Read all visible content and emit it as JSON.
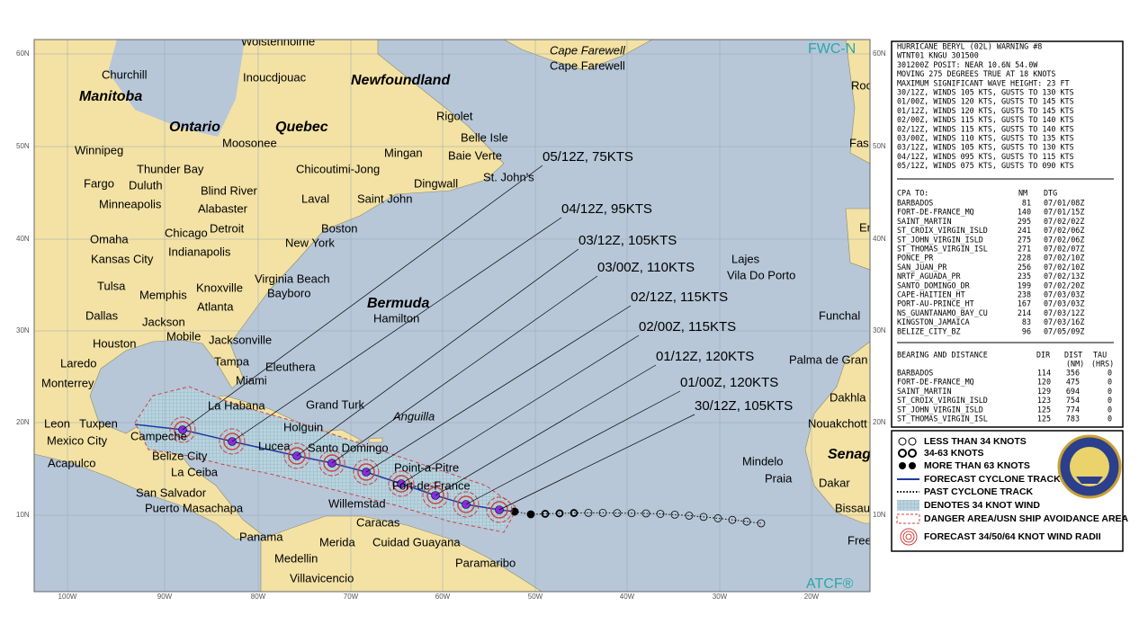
{
  "map": {
    "credit_top": "FWC-N",
    "credit_bottom": "ATCF®",
    "lat_labels": [
      "60N",
      "50N",
      "40N",
      "30N",
      "20N",
      "10N"
    ],
    "lon_labels": [
      "100W",
      "90W",
      "80W",
      "70W",
      "60W",
      "50W",
      "40W",
      "30W",
      "20W"
    ],
    "places": [
      "Wolstenholme",
      "Churchill",
      "Manitoba",
      "Inoucdjouac",
      "Newfoundland",
      "Cape Farewell",
      "Cape Farewell",
      "Ontario",
      "Quebec",
      "Rigolet",
      "Moosonee",
      "Belle Isle",
      "Winnipeg",
      "Mingan",
      "Baie Verte",
      "Thunder Bay",
      "Chicoutimi-Jong",
      "St. John's",
      "Fargo",
      "Duluth",
      "Dingwall",
      "Blind River",
      "Minneapolis",
      "Alabaster",
      "Laval",
      "Saint John",
      "Boston",
      "Chicago",
      "Detroit",
      "Omaha",
      "New York",
      "Indianapolis",
      "Kansas City",
      "Lajes",
      "Vila Do Porto",
      "Virginia Beach",
      "Tulsa",
      "Knoxville",
      "Bayboro",
      "Memphis",
      "Bermuda",
      "Atlanta",
      "Dallas",
      "Jackson",
      "Hamilton",
      "Funchal",
      "Mobile",
      "Jacksonville",
      "Houston",
      "Palma de Gran",
      "Laredo",
      "Tampa",
      "Eleuthera",
      "Monterrey",
      "Miami",
      "Dakhla",
      "La Habana",
      "Grand Turk",
      "Anguilla",
      "Leon",
      "Tuxpen",
      "Holguin",
      "Nouakchott",
      "Campeche",
      "Mexico City",
      "Lucea",
      "Santo Domingo",
      "Senag",
      "Belize City",
      "Acapulco",
      "Mindelo",
      "Point-a-Pitre",
      "La Ceiba",
      "Praia",
      "Fort-de-France",
      "Dakar",
      "San Salvador",
      "Willemstad",
      "Puerto Masachapa",
      "Bissau",
      "Caracas",
      "Panama",
      "Merida",
      "Cuidad Guayana",
      "Freet",
      "Medellin",
      "Paramaribo",
      "Villavicencio",
      "Roc",
      "Fas",
      "Er"
    ]
  },
  "forecast_labels": [
    "05/12Z,  75KTS",
    "04/12Z,  95KTS",
    "03/12Z, 105KTS",
    "03/00Z, 110KTS",
    "02/12Z, 115KTS",
    "02/00Z, 115KTS",
    "01/12Z, 120KTS",
    "01/00Z, 120KTS",
    "30/12Z, 105KTS"
  ],
  "warning": {
    "lines": [
      "HURRICANE BERYL (02L) WARNING #8",
      "WTNT01 KNGU 301500",
      "301200Z POSIT: NEAR 10.6N 54.0W",
      "MOVING 275 DEGREES TRUE AT 18 KNOTS",
      "MAXIMUM SIGNIFICANT WAVE HEIGHT: 23 FT",
      "30/12Z, WINDS 105 KTS, GUSTS TO 130 KTS",
      "01/00Z, WINDS 120 KTS, GUSTS TO 145 KTS",
      "01/12Z, WINDS 120 KTS, GUSTS TO 145 KTS",
      "02/00Z, WINDS 115 KTS, GUSTS TO 140 KTS",
      "02/12Z, WINDS 115 KTS, GUSTS TO 140 KTS",
      "03/00Z, WINDS 110 KTS, GUSTS TO 135 KTS",
      "03/12Z, WINDS 105 KTS, GUSTS TO 130 KTS",
      "04/12Z, WINDS 095 KTS, GUSTS TO 115 KTS",
      "05/12Z, WINDS 075 KTS, GUSTS TO 090 KTS"
    ]
  },
  "cpa": {
    "header": [
      "CPA TO:",
      "NM",
      "DTG"
    ],
    "rows": [
      [
        "BARBADOS",
        81,
        "07/01/08Z"
      ],
      [
        "FORT-DE-FRANCE_MQ",
        140,
        "07/01/15Z"
      ],
      [
        "SAINT_MARTIN",
        295,
        "07/02/02Z"
      ],
      [
        "ST_CROIX_VIRGIN_ISLD",
        241,
        "07/02/06Z"
      ],
      [
        "ST_JOHN_VIRGIN_ISLD",
        275,
        "07/02/06Z"
      ],
      [
        "ST_THOMAS_VIRGIN_ISL",
        271,
        "07/02/07Z"
      ],
      [
        "PONCE_PR",
        228,
        "07/02/10Z"
      ],
      [
        "SAN_JUAN_PR",
        256,
        "07/02/10Z"
      ],
      [
        "NRTF_AGUADA_PR",
        235,
        "07/02/13Z"
      ],
      [
        "SANTO_DOMINGO_DR",
        199,
        "07/02/20Z"
      ],
      [
        "CAPE-HAITIEN_HT",
        238,
        "07/03/03Z"
      ],
      [
        "PORT-AU-PRINCE_HT",
        167,
        "07/03/03Z"
      ],
      [
        "NS_GUANTANAMO_BAY_CU",
        214,
        "07/03/12Z"
      ],
      [
        "KINGSTON_JAMAICA",
        83,
        "07/03/16Z"
      ],
      [
        "BELIZE_CITY_BZ",
        96,
        "07/05/09Z"
      ]
    ]
  },
  "bearing": {
    "header": [
      "BEARING AND DISTANCE",
      "DIR",
      "DIST",
      "TAU"
    ],
    "subheader": [
      "(NM)",
      "(HRS)"
    ],
    "rows": [
      [
        "BARBADOS",
        114,
        356,
        0
      ],
      [
        "FORT-DE-FRANCE_MQ",
        120,
        475,
        0
      ],
      [
        "SAINT_MARTIN",
        129,
        694,
        0
      ],
      [
        "ST_CROIX_VIRGIN_ISLD",
        123,
        754,
        0
      ],
      [
        "ST_JOHN_VIRGIN_ISLD",
        125,
        774,
        0
      ],
      [
        "ST_THOMAS_VIRGIN_ISL",
        125,
        783,
        0
      ]
    ]
  },
  "legend": [
    "LESS THAN 34 KNOTS",
    "34-63 KNOTS",
    "MORE THAN 63 KNOTS",
    "FORECAST CYCLONE TRACK",
    "PAST CYCLONE TRACK",
    "DENOTES 34 KNOT WIND",
    "DANGER AREA/USN SHIP AVOIDANCE AREA",
    "FORECAST 34/50/64 KNOT WIND RADII"
  ]
}
